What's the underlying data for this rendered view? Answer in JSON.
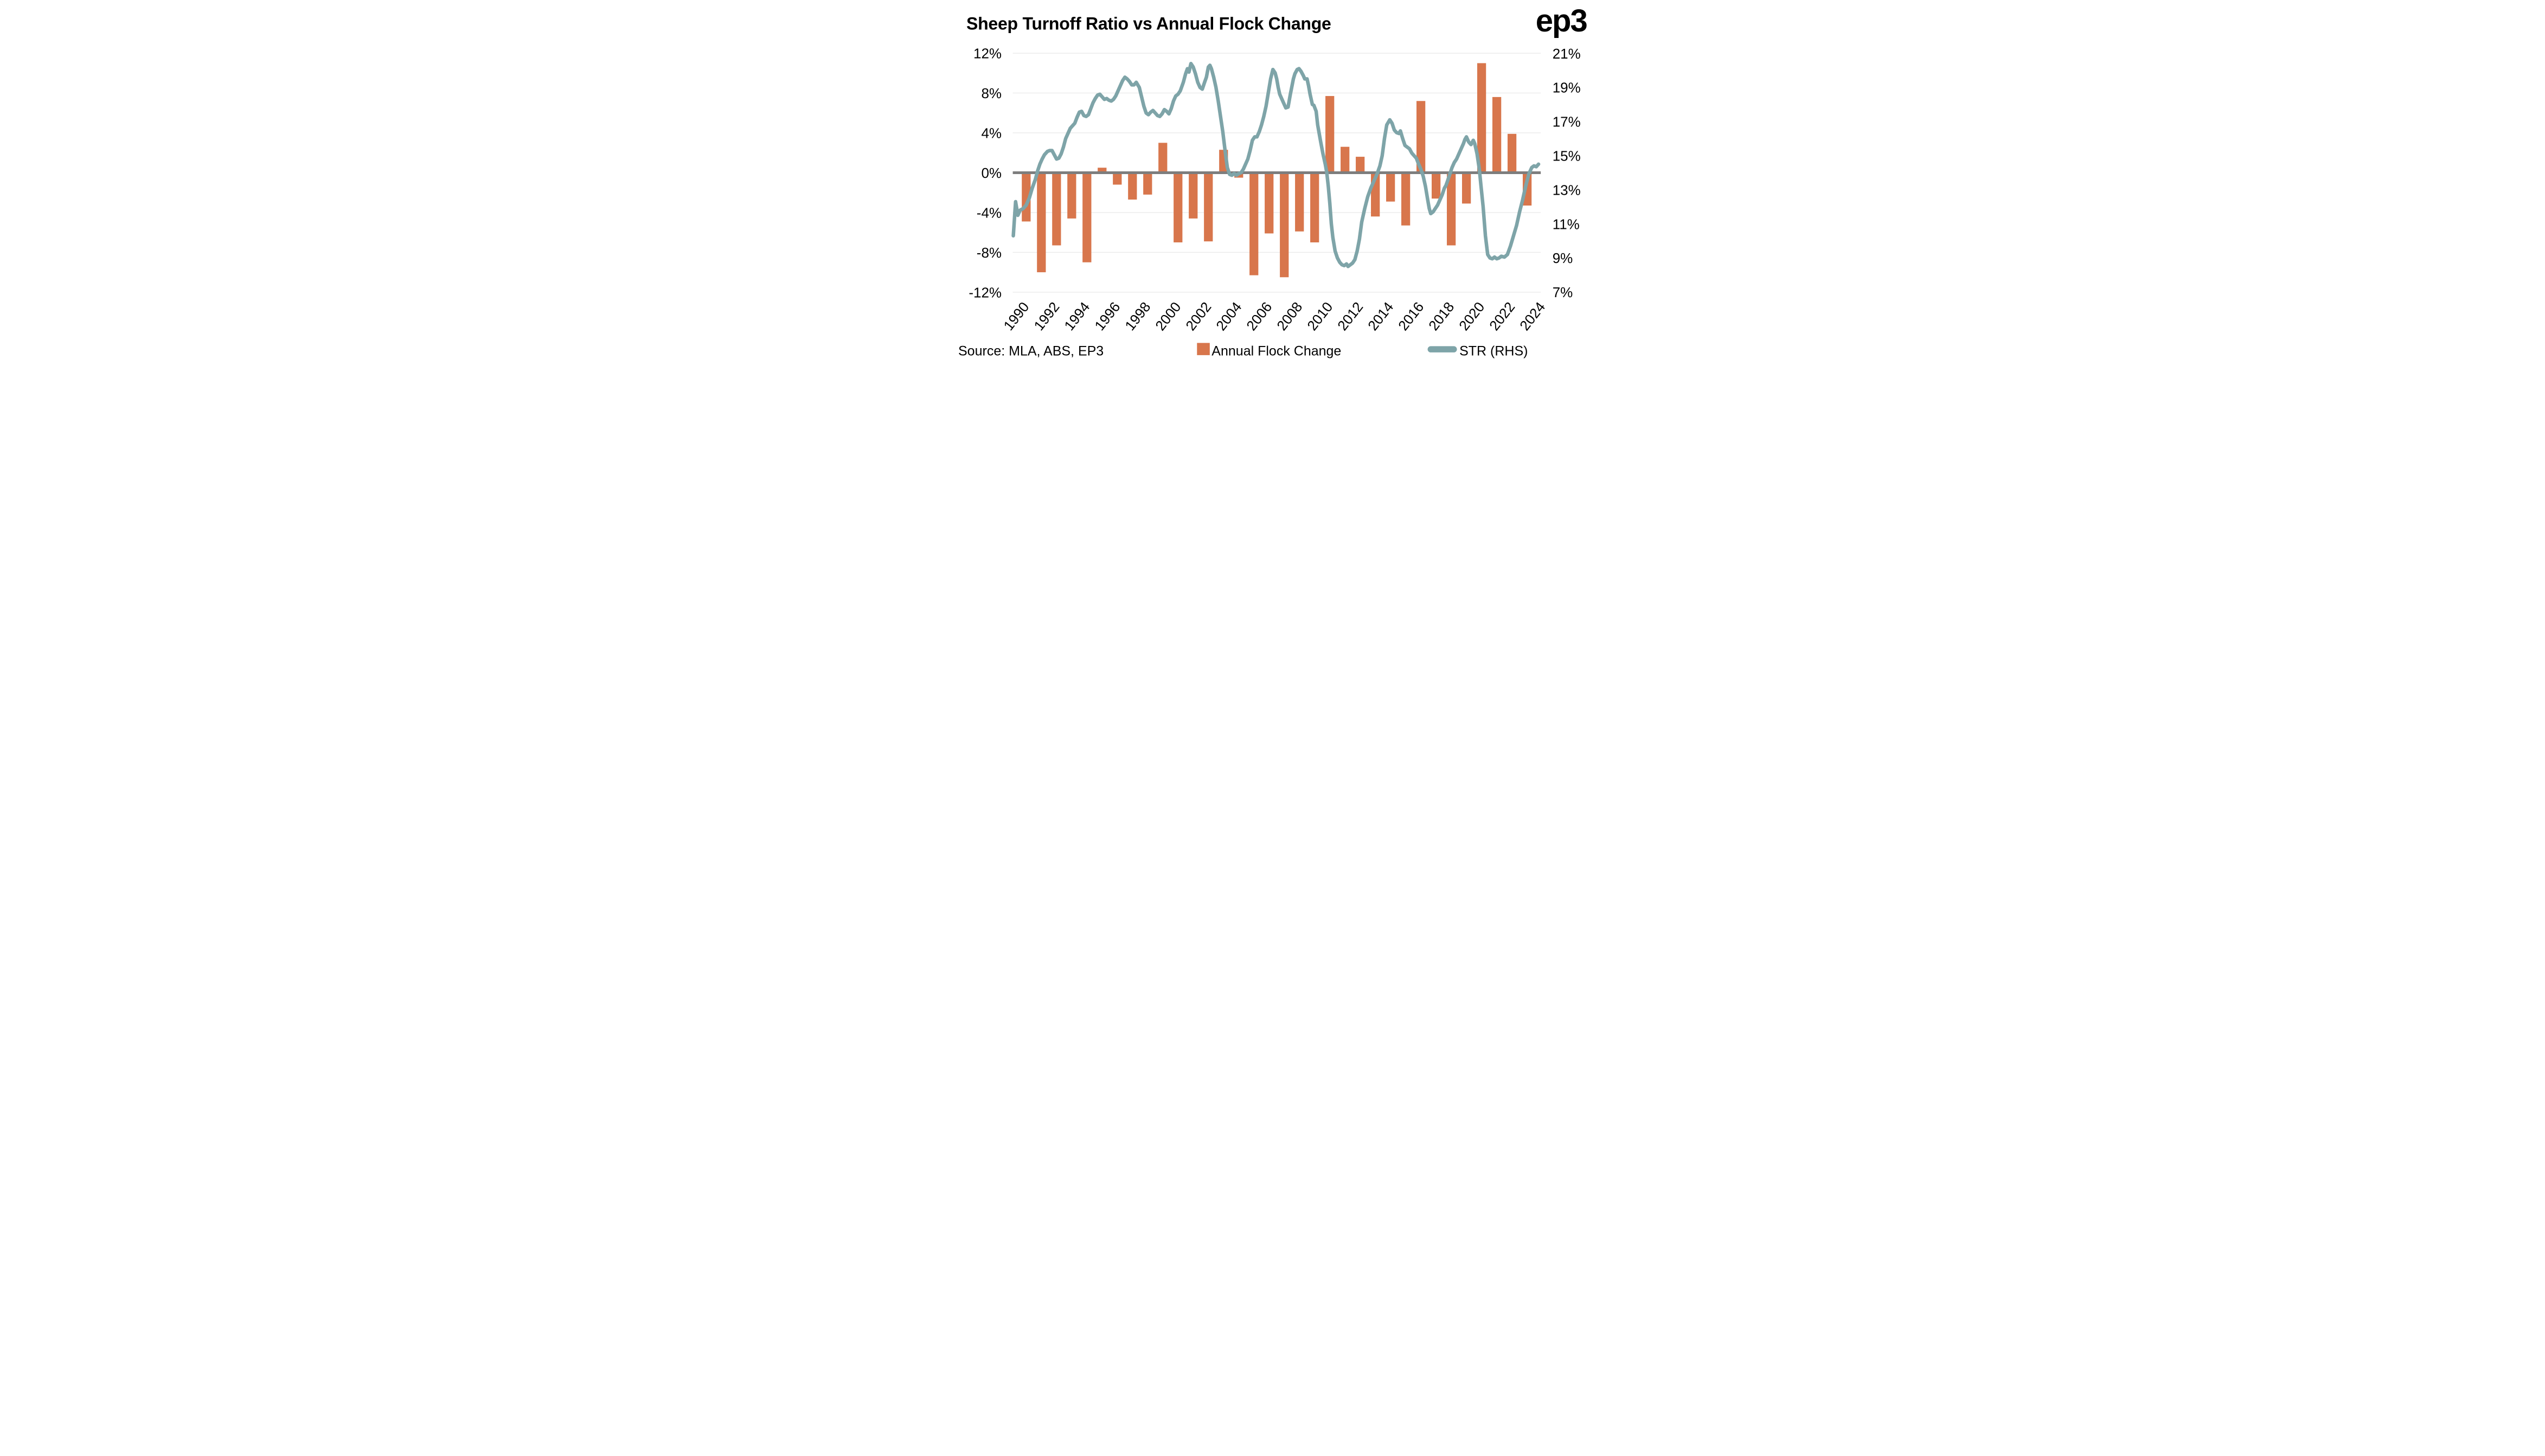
{
  "title": "Sheep Turnoff Ratio vs Annual Flock Change",
  "logo_text": "ep3",
  "source_note": "Source: MLA, ABS, EP3",
  "legend": {
    "bar_label": "Annual Flock Change",
    "line_label": "STR (RHS)"
  },
  "colors": {
    "bar": "#D8764C",
    "line": "#7EA4A8",
    "zero_line": "#7D7D7D",
    "gridline": "#ECECEC",
    "text": "#000000",
    "logo": "#2B2A28",
    "background": "#FFFFFF"
  },
  "chart_data": {
    "type": "combo-bar-line",
    "title": "Sheep Turnoff Ratio vs Annual Flock Change",
    "grid": true,
    "legend_position": "bottom",
    "left_axis": {
      "label": "Annual Flock Change",
      "unit": "%",
      "ticks": [
        12,
        8,
        4,
        0,
        -4,
        -8,
        -12
      ],
      "range": [
        -12,
        12
      ]
    },
    "right_axis": {
      "label": "STR",
      "unit": "%",
      "ticks": [
        21,
        19,
        17,
        15,
        13,
        11,
        9,
        7
      ],
      "range": [
        7,
        21
      ]
    },
    "x_axis": {
      "tick_labels": [
        "1990",
        "1992",
        "1994",
        "1996",
        "1998",
        "2000",
        "2002",
        "2004",
        "2006",
        "2008",
        "2010",
        "2012",
        "2014",
        "2016",
        "2018",
        "2020",
        "2022",
        "2024"
      ],
      "label_rotation_deg": -52
    },
    "bar_series": {
      "name": "Annual Flock Change",
      "axis": "left",
      "unit": "%",
      "years": [
        1990,
        1991,
        1992,
        1993,
        1994,
        1995,
        1996,
        1997,
        1998,
        1999,
        2000,
        2001,
        2002,
        2003,
        2004,
        2005,
        2006,
        2007,
        2008,
        2009,
        2010,
        2011,
        2012,
        2013,
        2014,
        2015,
        2016,
        2017,
        2018,
        2019,
        2020,
        2021,
        2022,
        2023,
        2024
      ],
      "values": [
        -4.9,
        -10.0,
        -7.3,
        -4.6,
        -9.0,
        0.5,
        -1.2,
        -2.7,
        -2.2,
        3.0,
        -7.0,
        -4.6,
        -6.9,
        2.3,
        -0.5,
        -10.3,
        -6.1,
        -10.5,
        -5.9,
        -7.0,
        7.7,
        2.6,
        1.6,
        -4.4,
        -2.9,
        -5.3,
        7.2,
        -2.6,
        -7.3,
        -3.1,
        11.0,
        7.6,
        3.9,
        -3.3,
        null
      ]
    },
    "line_series": {
      "name": "STR (RHS)",
      "axis": "right",
      "unit": "%",
      "points": [
        [
          1989.15,
          10.3
        ],
        [
          1989.3,
          12.3
        ],
        [
          1989.45,
          11.5
        ],
        [
          1989.6,
          11.8
        ],
        [
          1989.8,
          11.9
        ],
        [
          1990.0,
          12.1
        ],
        [
          1990.2,
          12.5
        ],
        [
          1990.4,
          13.1
        ],
        [
          1990.6,
          13.6
        ],
        [
          1990.75,
          14.1
        ],
        [
          1990.9,
          14.5
        ],
        [
          1991.05,
          14.8
        ],
        [
          1991.2,
          15.05
        ],
        [
          1991.4,
          15.25
        ],
        [
          1991.55,
          15.3
        ],
        [
          1991.7,
          15.3
        ],
        [
          1991.85,
          15.05
        ],
        [
          1992.0,
          14.8
        ],
        [
          1992.15,
          14.85
        ],
        [
          1992.3,
          15.1
        ],
        [
          1992.45,
          15.5
        ],
        [
          1992.6,
          16.0
        ],
        [
          1992.75,
          16.3
        ],
        [
          1992.9,
          16.6
        ],
        [
          1993.05,
          16.75
        ],
        [
          1993.2,
          16.9
        ],
        [
          1993.35,
          17.25
        ],
        [
          1993.5,
          17.55
        ],
        [
          1993.65,
          17.6
        ],
        [
          1993.8,
          17.35
        ],
        [
          1993.95,
          17.3
        ],
        [
          1994.1,
          17.4
        ],
        [
          1994.25,
          17.75
        ],
        [
          1994.4,
          18.1
        ],
        [
          1994.55,
          18.35
        ],
        [
          1994.7,
          18.55
        ],
        [
          1994.85,
          18.6
        ],
        [
          1995.0,
          18.45
        ],
        [
          1995.15,
          18.3
        ],
        [
          1995.3,
          18.35
        ],
        [
          1995.45,
          18.25
        ],
        [
          1995.6,
          18.2
        ],
        [
          1995.75,
          18.3
        ],
        [
          1995.9,
          18.5
        ],
        [
          1996.05,
          18.8
        ],
        [
          1996.2,
          19.1
        ],
        [
          1996.35,
          19.4
        ],
        [
          1996.5,
          19.6
        ],
        [
          1996.65,
          19.5
        ],
        [
          1996.8,
          19.35
        ],
        [
          1996.95,
          19.15
        ],
        [
          1997.1,
          19.15
        ],
        [
          1997.25,
          19.3
        ],
        [
          1997.45,
          19.0
        ],
        [
          1997.6,
          18.45
        ],
        [
          1997.75,
          17.9
        ],
        [
          1997.9,
          17.5
        ],
        [
          1998.05,
          17.4
        ],
        [
          1998.2,
          17.55
        ],
        [
          1998.35,
          17.65
        ],
        [
          1998.5,
          17.5
        ],
        [
          1998.65,
          17.35
        ],
        [
          1998.8,
          17.3
        ],
        [
          1998.95,
          17.45
        ],
        [
          1999.1,
          17.7
        ],
        [
          1999.25,
          17.6
        ],
        [
          1999.4,
          17.45
        ],
        [
          1999.55,
          17.75
        ],
        [
          1999.7,
          18.2
        ],
        [
          1999.85,
          18.5
        ],
        [
          2000.0,
          18.6
        ],
        [
          2000.15,
          18.8
        ],
        [
          2000.35,
          19.3
        ],
        [
          2000.5,
          19.8
        ],
        [
          2000.62,
          20.1
        ],
        [
          2000.72,
          19.9
        ],
        [
          2000.85,
          20.4
        ],
        [
          2001.0,
          20.2
        ],
        [
          2001.15,
          19.8
        ],
        [
          2001.3,
          19.3
        ],
        [
          2001.45,
          19.0
        ],
        [
          2001.6,
          18.9
        ],
        [
          2001.75,
          19.3
        ],
        [
          2001.87,
          19.6
        ],
        [
          2002.0,
          20.2
        ],
        [
          2002.1,
          20.3
        ],
        [
          2002.2,
          20.1
        ],
        [
          2002.35,
          19.6
        ],
        [
          2002.5,
          19.0
        ],
        [
          2002.65,
          18.2
        ],
        [
          2002.8,
          17.3
        ],
        [
          2002.95,
          16.4
        ],
        [
          2003.1,
          15.3
        ],
        [
          2003.25,
          14.3
        ],
        [
          2003.4,
          13.9
        ],
        [
          2003.55,
          13.85
        ],
        [
          2003.7,
          13.95
        ],
        [
          2003.85,
          13.85
        ],
        [
          2004.0,
          13.95
        ],
        [
          2004.15,
          14.0
        ],
        [
          2004.3,
          14.2
        ],
        [
          2004.45,
          14.5
        ],
        [
          2004.6,
          14.8
        ],
        [
          2004.75,
          15.3
        ],
        [
          2004.9,
          15.9
        ],
        [
          2005.05,
          16.1
        ],
        [
          2005.2,
          16.1
        ],
        [
          2005.35,
          16.4
        ],
        [
          2005.5,
          16.8
        ],
        [
          2005.65,
          17.3
        ],
        [
          2005.8,
          17.9
        ],
        [
          2005.95,
          18.7
        ],
        [
          2006.1,
          19.5
        ],
        [
          2006.25,
          20.05
        ],
        [
          2006.4,
          19.85
        ],
        [
          2006.5,
          19.5
        ],
        [
          2006.6,
          19.0
        ],
        [
          2006.7,
          18.6
        ],
        [
          2006.85,
          18.3
        ],
        [
          2006.95,
          18.1
        ],
        [
          2007.1,
          17.8
        ],
        [
          2007.25,
          17.85
        ],
        [
          2007.4,
          18.6
        ],
        [
          2007.5,
          19.05
        ],
        [
          2007.6,
          19.5
        ],
        [
          2007.7,
          19.8
        ],
        [
          2007.85,
          20.05
        ],
        [
          2007.97,
          20.1
        ],
        [
          2008.1,
          19.95
        ],
        [
          2008.25,
          19.7
        ],
        [
          2008.35,
          19.5
        ],
        [
          2008.5,
          19.5
        ],
        [
          2008.6,
          19.1
        ],
        [
          2008.7,
          18.6
        ],
        [
          2008.85,
          18.0
        ],
        [
          2008.95,
          17.95
        ],
        [
          2009.1,
          17.6
        ],
        [
          2009.2,
          16.8
        ],
        [
          2009.3,
          16.3
        ],
        [
          2009.4,
          15.8
        ],
        [
          2009.55,
          15.1
        ],
        [
          2009.7,
          14.5
        ],
        [
          2009.8,
          14.0
        ],
        [
          2009.9,
          13.2
        ],
        [
          2010.0,
          12.2
        ],
        [
          2010.1,
          11.0
        ],
        [
          2010.2,
          10.2
        ],
        [
          2010.35,
          9.4
        ],
        [
          2010.5,
          9.0
        ],
        [
          2010.65,
          8.75
        ],
        [
          2010.8,
          8.6
        ],
        [
          2010.95,
          8.55
        ],
        [
          2011.1,
          8.65
        ],
        [
          2011.2,
          8.5
        ],
        [
          2011.35,
          8.6
        ],
        [
          2011.5,
          8.7
        ],
        [
          2011.65,
          8.9
        ],
        [
          2011.8,
          9.4
        ],
        [
          2011.95,
          10.1
        ],
        [
          2012.1,
          11.1
        ],
        [
          2012.3,
          11.9
        ],
        [
          2012.5,
          12.6
        ],
        [
          2012.7,
          13.1
        ],
        [
          2012.9,
          13.5
        ],
        [
          2013.1,
          13.9
        ],
        [
          2013.3,
          14.4
        ],
        [
          2013.45,
          15.0
        ],
        [
          2013.6,
          16.0
        ],
        [
          2013.75,
          16.8
        ],
        [
          2013.95,
          17.1
        ],
        [
          2014.1,
          16.9
        ],
        [
          2014.25,
          16.5
        ],
        [
          2014.4,
          16.35
        ],
        [
          2014.55,
          16.3
        ],
        [
          2014.65,
          16.45
        ],
        [
          2014.8,
          16.0
        ],
        [
          2014.95,
          15.6
        ],
        [
          2015.1,
          15.5
        ],
        [
          2015.25,
          15.4
        ],
        [
          2015.4,
          15.15
        ],
        [
          2015.55,
          15.0
        ],
        [
          2015.7,
          14.85
        ],
        [
          2015.85,
          14.5
        ],
        [
          2016.0,
          14.2
        ],
        [
          2016.15,
          13.8
        ],
        [
          2016.3,
          13.2
        ],
        [
          2016.45,
          12.4
        ],
        [
          2016.55,
          11.9
        ],
        [
          2016.65,
          11.6
        ],
        [
          2016.8,
          11.7
        ],
        [
          2016.95,
          11.9
        ],
        [
          2017.1,
          12.1
        ],
        [
          2017.25,
          12.4
        ],
        [
          2017.4,
          12.7
        ],
        [
          2017.55,
          13.1
        ],
        [
          2017.65,
          13.25
        ],
        [
          2017.75,
          13.5
        ],
        [
          2017.9,
          13.9
        ],
        [
          2018.05,
          14.3
        ],
        [
          2018.2,
          14.6
        ],
        [
          2018.35,
          14.8
        ],
        [
          2018.5,
          15.1
        ],
        [
          2018.65,
          15.4
        ],
        [
          2018.8,
          15.7
        ],
        [
          2018.9,
          15.95
        ],
        [
          2019.0,
          16.1
        ],
        [
          2019.15,
          15.8
        ],
        [
          2019.3,
          15.65
        ],
        [
          2019.45,
          15.9
        ],
        [
          2019.55,
          15.7
        ],
        [
          2019.7,
          15.1
        ],
        [
          2019.85,
          14.2
        ],
        [
          2019.95,
          13.3
        ],
        [
          2020.1,
          12.0
        ],
        [
          2020.25,
          10.3
        ],
        [
          2020.4,
          9.2
        ],
        [
          2020.55,
          9.0
        ],
        [
          2020.7,
          8.95
        ],
        [
          2020.85,
          9.05
        ],
        [
          2021.0,
          8.95
        ],
        [
          2021.15,
          9.0
        ],
        [
          2021.3,
          9.1
        ],
        [
          2021.5,
          9.05
        ],
        [
          2021.7,
          9.2
        ],
        [
          2021.9,
          9.7
        ],
        [
          2022.1,
          10.3
        ],
        [
          2022.3,
          10.9
        ],
        [
          2022.5,
          11.7
        ],
        [
          2022.7,
          12.4
        ],
        [
          2022.9,
          13.2
        ],
        [
          2023.1,
          13.9
        ],
        [
          2023.3,
          14.3
        ],
        [
          2023.45,
          14.4
        ],
        [
          2023.6,
          14.35
        ],
        [
          2023.75,
          14.5
        ]
      ]
    }
  }
}
